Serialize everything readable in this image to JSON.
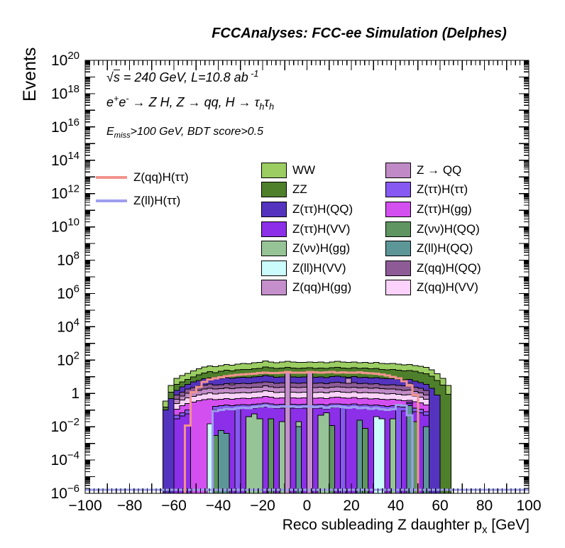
{
  "title": "FCCAnalyses: FCC-ee Simulation (Delphes)",
  "y_axis": {
    "title": "Events",
    "label_exponents": [
      20,
      18,
      16,
      14,
      12,
      10,
      8,
      6,
      4,
      2,
      0,
      -2,
      -4,
      -6
    ],
    "unit_label": "1",
    "min_exp": -6,
    "max_exp": 20
  },
  "x_axis": {
    "title_segments": [
      {
        "t": "Reco subleading Z daughter p"
      },
      {
        "t": "x",
        "sub": 1
      },
      {
        "t": " [GeV]"
      }
    ],
    "min": -100,
    "max": 100,
    "major_step": 10,
    "minor_step": 2,
    "tick_labels": [
      {
        "v": -100,
        "label": "−100"
      },
      {
        "v": -80,
        "label": "−80"
      },
      {
        "v": -60,
        "label": "−60"
      },
      {
        "v": -40,
        "label": "−40"
      },
      {
        "v": -20,
        "label": "−20"
      },
      {
        "v": 0,
        "label": "0"
      },
      {
        "v": 20,
        "label": "20"
      },
      {
        "v": 40,
        "label": "40"
      },
      {
        "v": 60,
        "label": "60"
      },
      {
        "v": 80,
        "label": "80"
      },
      {
        "v": 100,
        "label": "100"
      }
    ]
  },
  "annotations": {
    "line1": [
      {
        "t": "√"
      },
      {
        "t": "s",
        "ol": 1
      },
      {
        "t": " = 240 GeV, L=10.8 ab"
      },
      {
        "t": " -1",
        "sup": 1
      }
    ],
    "line2": [
      {
        "t": "e"
      },
      {
        "t": "+",
        "sup": 1
      },
      {
        "t": "e"
      },
      {
        "t": "-",
        "sup": 1
      },
      {
        "t": " → Z H, Z  → qq, H  → τ"
      },
      {
        "t": "h",
        "sub": 1
      },
      {
        "t": "τ"
      },
      {
        "t": "h",
        "sub": 1
      }
    ],
    "line3": [
      {
        "t": "E"
      },
      {
        "t": "miss",
        "sub": 1
      },
      {
        "t": ">100 GeV, BDT score>0.5"
      }
    ]
  },
  "legend_signals": [
    {
      "label": "Z(qq)H(ττ)",
      "color": "#F2938D"
    },
    {
      "label": "Z(ll)H(ττ)",
      "color": "#9E9EEF"
    }
  ],
  "legend_col1": [
    {
      "label": "WW",
      "color": "#9BCD62"
    },
    {
      "label": "ZZ",
      "color": "#4E7F2B"
    },
    {
      "label": "Z(ττ)H(QQ)",
      "color": "#5434BE"
    },
    {
      "label": "Z(ττ)H(VV)",
      "color": "#8B2FE8"
    },
    {
      "label": "Z(νν)H(gg)",
      "color": "#96C496"
    },
    {
      "label": "Z(ll)H(VV)",
      "color": "#CCFBFB"
    },
    {
      "label": "Z(qq)H(gg)",
      "color": "#C48FCB"
    }
  ],
  "legend_col2": [
    {
      "label": "Z → QQ",
      "color": "#BF8AC6"
    },
    {
      "label": "Z(ττ)H(ττ)",
      "color": "#8659F2"
    },
    {
      "label": "Z(ττ)H(gg)",
      "color": "#D44FF0"
    },
    {
      "label": "Z(νν)H(QQ)",
      "color": "#5E9560"
    },
    {
      "label": "Z(ll)H(QQ)",
      "color": "#5D9697"
    },
    {
      "label": "Z(qq)H(QQ)",
      "color": "#8D5C96"
    },
    {
      "label": "Z(qq)H(VV)",
      "color": "#FAD2FA"
    }
  ],
  "chart_data": {
    "type": "stacked-histogram",
    "y_scale": "log",
    "y_min": 1e-06,
    "y_max": 1e+20,
    "x_min": -100,
    "x_max": 100,
    "bin_start": -65,
    "bin_width": 2.5,
    "n_bins": 52,
    "stack": [
      {
        "name": "WW",
        "color": "#9BCD62",
        "values": [
          0.35,
          3,
          8,
          12,
          16,
          22,
          30,
          38,
          45,
          40,
          48,
          55,
          50,
          58,
          63,
          60,
          68,
          72,
          88,
          78,
          70,
          75,
          83,
          77,
          72,
          74,
          78,
          72,
          75,
          70,
          78,
          83,
          75,
          72,
          78,
          70,
          74,
          67,
          72,
          64,
          60,
          62,
          57,
          52,
          55,
          47,
          42,
          36,
          26,
          15,
          8,
          3
        ]
      },
      {
        "name": "ZZ",
        "color": "#4E7F2B",
        "values": [
          0.15,
          1.2,
          3.5,
          5,
          7,
          10,
          13,
          17,
          20,
          18,
          21,
          25,
          22,
          26,
          28,
          27,
          30,
          32,
          38,
          35,
          31,
          33,
          37,
          34,
          32,
          33,
          35,
          32,
          33,
          31,
          35,
          37,
          33,
          32,
          35,
          31,
          33,
          30,
          32,
          28,
          26,
          27,
          25,
          23,
          24,
          21,
          18,
          15,
          11,
          6,
          3.2,
          0.9
        ]
      },
      {
        "name": "Z(ττ)H(QQ)",
        "color": "#5434BE",
        "values": [
          0.1,
          0.5,
          1.5,
          2.5,
          3.5,
          5,
          6,
          7.5,
          8.5,
          7.5,
          8,
          9,
          8,
          9,
          9.5,
          9,
          10,
          10.5,
          12,
          11,
          9.5,
          10,
          21,
          10,
          9.5,
          10,
          20,
          9.5,
          10,
          9,
          10.5,
          11,
          10,
          9.5,
          10.5,
          9,
          9.5,
          8.5,
          9,
          8,
          7.5,
          7.8,
          7,
          6.5,
          6.8,
          5.5,
          4.5,
          3.5,
          2,
          0.8,
          0,
          0
        ]
      },
      {
        "name": "Z(qq)H(gg)",
        "color": "#C48FCB",
        "values": [
          0,
          0,
          0,
          0,
          0,
          0,
          0,
          0,
          0,
          0,
          0,
          0,
          4,
          0,
          0,
          0,
          0,
          0,
          0,
          0,
          0,
          0,
          20.5,
          0,
          0,
          0,
          19.5,
          0,
          0,
          0,
          0,
          0,
          0,
          8,
          0,
          0,
          0,
          0,
          0,
          0,
          0,
          0,
          0,
          0,
          4,
          0,
          0,
          0,
          0,
          0,
          0,
          0
        ]
      },
      {
        "name": "Z(qq)H(QQ)",
        "color": "#8D5C96",
        "values": [
          0,
          0,
          0.8,
          1.2,
          1.8,
          2.2,
          2.8,
          3.2,
          3.6,
          3.2,
          3.4,
          3.8,
          3.4,
          3.8,
          4,
          3.8,
          4.2,
          4.4,
          5,
          4.6,
          4,
          4.2,
          0,
          4.2,
          4,
          4.2,
          0,
          4,
          4.2,
          3.8,
          4.4,
          4.6,
          4.2,
          4,
          4.4,
          3.8,
          4,
          3.6,
          3.8,
          3.4,
          3.2,
          3.3,
          3,
          2.8,
          2.9,
          2.4,
          2,
          1.5,
          0,
          0,
          0,
          0
        ]
      },
      {
        "name": "Z → QQ",
        "color": "#BF8AC6",
        "values": [
          0,
          0,
          0.45,
          0.7,
          1,
          1.2,
          1.5,
          1.8,
          2,
          1.8,
          1.9,
          2.1,
          1.9,
          2.1,
          2.2,
          2.1,
          2.3,
          2.4,
          2.8,
          2.5,
          2.2,
          2.3,
          0,
          2.3,
          2.2,
          2.3,
          0,
          2.2,
          2.3,
          2.1,
          2.4,
          2.5,
          2.3,
          2.2,
          2.4,
          2.1,
          2.2,
          2,
          2.1,
          1.9,
          1.8,
          1.8,
          1.7,
          1.5,
          1.6,
          1.3,
          1.1,
          0.8,
          0,
          0,
          0,
          0
        ]
      },
      {
        "name": "Z(qq)H(VV)",
        "color": "#FAD2FA",
        "values": [
          0,
          0,
          0.25,
          0.4,
          0.55,
          0.65,
          0.8,
          0.95,
          1.05,
          0.95,
          1,
          1.1,
          1,
          1.1,
          1.15,
          1.1,
          1.2,
          1.25,
          1.45,
          1.3,
          1.15,
          1.2,
          0,
          1.2,
          1.15,
          1.2,
          0,
          1.15,
          1.2,
          1.1,
          1.25,
          1.3,
          1.2,
          1.15,
          1.25,
          1.1,
          1.15,
          1.05,
          1.1,
          1,
          0.95,
          0.97,
          0.9,
          0.82,
          0.86,
          0.7,
          0.6,
          0.45,
          0,
          0,
          0,
          0
        ]
      },
      {
        "name": "Z(ττ)H(gg)",
        "color": "#D44FF0",
        "values": [
          0,
          0,
          0.11,
          0.18,
          0.25,
          0.3,
          0.36,
          0.43,
          0.47,
          0.43,
          0.45,
          0.5,
          0.45,
          0.5,
          0.52,
          0.5,
          0.54,
          0.56,
          0.65,
          0.59,
          0.52,
          0.54,
          0,
          0.54,
          0.52,
          0.54,
          0,
          0.52,
          0.54,
          0.5,
          0.56,
          0.59,
          0.54,
          0.52,
          0.56,
          0.5,
          0.52,
          0.47,
          0.5,
          0.45,
          0.43,
          0.44,
          0.4,
          0.37,
          0.39,
          0.32,
          0.27,
          0.2,
          0,
          0,
          0,
          0
        ]
      },
      {
        "name": "Z(ττ)H(ττ)",
        "color": "#8659F2",
        "values": [
          0,
          0,
          0.05,
          0.07,
          0.1,
          0,
          0,
          0,
          0,
          0.17,
          0.18,
          0.2,
          0.18,
          0.2,
          0.21,
          0.2,
          0.22,
          0.23,
          0.26,
          0.24,
          0.21,
          0.22,
          0,
          0.22,
          0.21,
          0.22,
          0,
          0.21,
          0.22,
          0.2,
          0.23,
          0.24,
          0.22,
          0.21,
          0.23,
          0.2,
          0.21,
          0.19,
          0.2,
          0.18,
          0.17,
          0.18,
          0.16,
          0.15,
          0.3,
          0.13,
          0.11,
          0.08,
          0,
          0,
          0,
          0
        ]
      },
      {
        "name": "Z(ττ)H(VV)",
        "color": "#8B2FE8",
        "values": [
          0,
          0,
          0.03,
          0.045,
          0.06,
          0,
          0,
          0,
          0,
          0.1,
          0.11,
          0.12,
          0.11,
          0,
          0.13,
          0.12,
          0.13,
          0.14,
          0.16,
          0.15,
          0.13,
          0.13,
          0,
          0.13,
          0.13,
          0.13,
          0,
          0.13,
          0.13,
          0.12,
          0.14,
          0.15,
          0,
          0.13,
          0.14,
          0.12,
          0.13,
          0.11,
          0.12,
          0.11,
          0.1,
          0.11,
          0,
          0.09,
          0.25,
          0.08,
          0.07,
          0.05,
          0,
          0,
          0,
          0
        ]
      },
      {
        "name": "Z(νν)H(gg)",
        "color": "#96C496",
        "values": [
          0,
          0,
          0,
          0,
          0,
          0,
          0,
          0,
          0,
          0,
          0,
          0,
          0,
          0,
          0,
          0.04,
          0.06,
          0.03,
          0,
          0,
          0,
          0.02,
          0,
          0,
          0.02,
          0,
          0,
          0,
          0.05,
          0.07,
          0,
          0,
          0,
          0,
          0,
          0,
          0,
          0,
          0,
          0,
          0,
          0.03,
          0,
          0,
          0,
          0,
          0,
          0,
          0,
          0,
          0,
          0
        ]
      },
      {
        "name": "Z(νν)H(QQ)",
        "color": "#5E9560",
        "values": [
          0,
          0,
          0,
          0,
          0,
          0,
          0,
          0,
          0,
          0.003,
          0,
          0,
          0,
          0,
          0,
          0,
          0,
          0,
          0,
          0.03,
          0,
          0,
          0,
          0,
          0,
          0,
          0,
          0,
          0,
          0,
          0.012,
          0,
          0,
          0,
          0,
          0,
          0.008,
          0,
          0,
          0,
          0,
          0,
          0,
          0,
          0,
          0.02,
          0,
          0,
          0,
          0,
          0,
          0
        ]
      },
      {
        "name": "Z(ll)H(QQ)",
        "color": "#5D9697",
        "values": [
          0,
          0,
          0,
          0,
          0,
          0,
          0,
          0,
          0,
          0,
          0.006,
          0.004,
          0,
          0,
          0,
          0,
          0,
          0,
          0,
          0,
          0,
          0,
          0,
          0,
          0.01,
          0,
          0,
          0,
          0,
          0,
          0,
          0,
          0,
          0,
          0,
          0.025,
          0,
          0,
          0,
          0,
          0,
          0,
          0,
          0,
          0.18,
          0,
          0,
          0.01,
          0,
          0,
          0,
          0
        ]
      },
      {
        "name": "Z(ll)H(VV)",
        "color": "#CCFBFB",
        "values": [
          0,
          0,
          0,
          0,
          0,
          0,
          0,
          0,
          0.015,
          0,
          0,
          0,
          0,
          0,
          0,
          0,
          0,
          0,
          0,
          0,
          0,
          0,
          0,
          0,
          0,
          0,
          0,
          0,
          0,
          0,
          0,
          0,
          0,
          0,
          0,
          0,
          0,
          0,
          0.04,
          0.03,
          0,
          0,
          0,
          0,
          0,
          0,
          0,
          0,
          0,
          0,
          0,
          0
        ]
      }
    ],
    "signal_lines": [
      {
        "name": "Z(qq)H(ττ)",
        "color": "#F2938D",
        "width": 3,
        "values": [
          0,
          0,
          0,
          0,
          0.012,
          1.2,
          2.5,
          5,
          7,
          8,
          9.5,
          11,
          12,
          13,
          14,
          14.5,
          15.5,
          16.5,
          18,
          17,
          16.5,
          17.5,
          19,
          18,
          17.5,
          18,
          19.5,
          18.5,
          18,
          18.5,
          19,
          18,
          18.5,
          17.5,
          18,
          18.5,
          17,
          16,
          15,
          13.5,
          12,
          10,
          8,
          5.5,
          3,
          0.8,
          0,
          0,
          0,
          0,
          0,
          0
        ]
      },
      {
        "name": "Z(ll)H(ττ)",
        "color": "#9E9EEF",
        "width": 3,
        "values": [
          0,
          0,
          0,
          0,
          0,
          0,
          0,
          0,
          0,
          0.09,
          0.1,
          0.12,
          0.11,
          0.13,
          0.14,
          0.13,
          0.15,
          0.16,
          0.18,
          0.16,
          0.15,
          0.16,
          0.17,
          0.16,
          0.15,
          0.16,
          0.17,
          0.15,
          0.16,
          0.14,
          0.16,
          0.17,
          0.15,
          0.14,
          0.15,
          0.13,
          0.14,
          0.12,
          0.13,
          0.11,
          0.1,
          0.11,
          0.2,
          0.18,
          0.05,
          0,
          0,
          0,
          0,
          0,
          0,
          0
        ]
      }
    ],
    "baseline": {
      "color": "#9E9EEF",
      "value": 1.6e-06,
      "x_min": -100,
      "x_max": 100
    }
  }
}
